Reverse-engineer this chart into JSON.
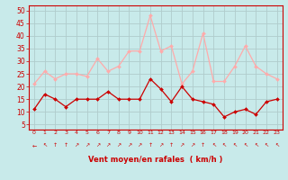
{
  "hours": [
    0,
    1,
    2,
    3,
    4,
    5,
    6,
    7,
    8,
    9,
    10,
    11,
    12,
    13,
    14,
    15,
    16,
    17,
    18,
    19,
    20,
    21,
    22,
    23
  ],
  "wind_avg": [
    11,
    17,
    15,
    12,
    15,
    15,
    15,
    18,
    15,
    15,
    15,
    23,
    19,
    14,
    20,
    15,
    14,
    13,
    8,
    10,
    11,
    9,
    14,
    15
  ],
  "wind_gust": [
    21,
    26,
    23,
    25,
    25,
    24,
    31,
    26,
    28,
    34,
    34,
    48,
    34,
    36,
    21,
    26,
    41,
    22,
    22,
    28,
    36,
    28,
    25,
    23
  ],
  "color_avg": "#cc0000",
  "color_gust": "#ffaaaa",
  "bg_color": "#c8eaea",
  "grid_color": "#b0cccc",
  "xlabel": "Vent moyen/en rafales  ( km/h )",
  "ylim": [
    3,
    52
  ],
  "yticks": [
    5,
    10,
    15,
    20,
    25,
    30,
    35,
    40,
    45,
    50
  ],
  "wind_dirs": [
    "←",
    "↖",
    "↑",
    "↑",
    "↗",
    "↗",
    "↗",
    "↗",
    "↗",
    "↗",
    "↗",
    "↑",
    "↗",
    "↑",
    "↗",
    "↗",
    "↑",
    "↖",
    "↖",
    "↖",
    "↖",
    "↖",
    "↖",
    "↖"
  ]
}
